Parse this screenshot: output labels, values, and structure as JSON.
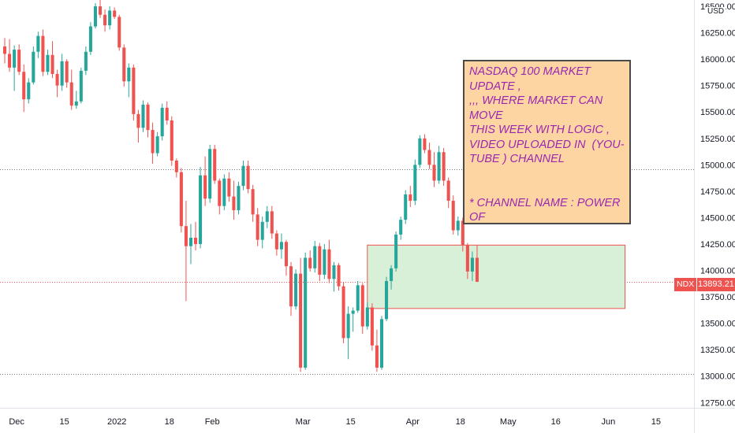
{
  "chart_data": {
    "type": "candlestick",
    "symbol": "NDX",
    "currency": "USD",
    "last_price": "13893.21",
    "last_price_value": 13893.21,
    "ylim": [
      12700,
      16560
    ],
    "y_ticks": [
      "16500.00",
      "16250.00",
      "16000.00",
      "15750.00",
      "15500.00",
      "15250.00",
      "15000.00",
      "14750.00",
      "14500.00",
      "14250.00",
      "14000.00",
      "13750.00",
      "13500.00",
      "13250.00",
      "13000.00",
      "12750.00"
    ],
    "y_tick_values": [
      16500,
      16250,
      16000,
      15750,
      15500,
      15250,
      15000,
      14750,
      14500,
      14250,
      14000,
      13750,
      13500,
      13250,
      13000,
      12750
    ],
    "x_ticks": [
      {
        "label": "Dec",
        "bar": 3
      },
      {
        "label": "15",
        "bar": 13
      },
      {
        "label": "2022",
        "bar": 24
      },
      {
        "label": "18",
        "bar": 35
      },
      {
        "label": "Feb",
        "bar": 44
      },
      {
        "label": "Mar",
        "bar": 63
      },
      {
        "label": "15",
        "bar": 73
      },
      {
        "label": "Apr",
        "bar": 86
      },
      {
        "label": "18",
        "bar": 96
      },
      {
        "label": "May",
        "bar": 106
      },
      {
        "label": "16",
        "bar": 116
      },
      {
        "label": "Jun",
        "bar": 127
      },
      {
        "label": "15",
        "bar": 137
      }
    ],
    "bar_count_visible": 150,
    "candles": [
      [
        16120,
        16200,
        15960,
        16050
      ],
      [
        16050,
        16190,
        15880,
        15920
      ],
      [
        15920,
        16130,
        15700,
        16090
      ],
      [
        16090,
        16140,
        15850,
        15880
      ],
      [
        15880,
        15950,
        15500,
        15620
      ],
      [
        15620,
        15820,
        15580,
        15780
      ],
      [
        15780,
        16120,
        15760,
        16070
      ],
      [
        16070,
        16260,
        16010,
        16220
      ],
      [
        16220,
        16280,
        15840,
        15880
      ],
      [
        15880,
        16090,
        15850,
        16040
      ],
      [
        16040,
        16170,
        15820,
        15860
      ],
      [
        15860,
        15900,
        15640,
        15750
      ],
      [
        15750,
        16050,
        15700,
        15980
      ],
      [
        15980,
        16000,
        15730,
        15780
      ],
      [
        15780,
        15900,
        15520,
        15560
      ],
      [
        15560,
        15700,
        15530,
        15600
      ],
      [
        15600,
        15920,
        15580,
        15890
      ],
      [
        15890,
        16120,
        15850,
        16070
      ],
      [
        16070,
        16350,
        16040,
        16310
      ],
      [
        16310,
        16530,
        16290,
        16500
      ],
      [
        16500,
        16560,
        16390,
        16420
      ],
      [
        16420,
        16470,
        16260,
        16320
      ],
      [
        16320,
        16500,
        16280,
        16460
      ],
      [
        16460,
        16490,
        16380,
        16400
      ],
      [
        16400,
        16420,
        16080,
        16110
      ],
      [
        16110,
        16140,
        15740,
        15790
      ],
      [
        15790,
        15960,
        15640,
        15920
      ],
      [
        15920,
        15950,
        15420,
        15480
      ],
      [
        15480,
        15520,
        15210,
        15350
      ],
      [
        15350,
        15610,
        15310,
        15570
      ],
      [
        15570,
        15590,
        15260,
        15330
      ],
      [
        15330,
        15400,
        15010,
        15110
      ],
      [
        15110,
        15310,
        15080,
        15270
      ],
      [
        15270,
        15580,
        15230,
        15540
      ],
      [
        15540,
        15600,
        15380,
        15420
      ],
      [
        15420,
        15460,
        14990,
        15040
      ],
      [
        15040,
        15060,
        14880,
        14930
      ],
      [
        14930,
        14970,
        14360,
        14420
      ],
      [
        14420,
        14660,
        13710,
        14230
      ],
      [
        14230,
        14440,
        14060,
        14310
      ],
      [
        14310,
        14460,
        14190,
        14250
      ],
      [
        14250,
        14980,
        14210,
        14900
      ],
      [
        14900,
        15080,
        14610,
        14680
      ],
      [
        14680,
        15190,
        14640,
        15150
      ],
      [
        15150,
        15190,
        14820,
        14850
      ],
      [
        14850,
        14870,
        14530,
        14610
      ],
      [
        14610,
        14910,
        14570,
        14870
      ],
      [
        14870,
        14930,
        14650,
        14700
      ],
      [
        14700,
        14850,
        14480,
        14570
      ],
      [
        14570,
        14840,
        14530,
        14800
      ],
      [
        14800,
        15040,
        14760,
        14990
      ],
      [
        14990,
        15040,
        14730,
        14770
      ],
      [
        14770,
        14810,
        14460,
        14530
      ],
      [
        14530,
        14590,
        14230,
        14290
      ],
      [
        14290,
        14510,
        14210,
        14460
      ],
      [
        14460,
        14610,
        14400,
        14560
      ],
      [
        14560,
        14610,
        14300,
        14350
      ],
      [
        14350,
        14380,
        14140,
        14200
      ],
      [
        14200,
        14350,
        14110,
        14270
      ],
      [
        14270,
        14290,
        13950,
        14040
      ],
      [
        14040,
        14080,
        13570,
        13660
      ],
      [
        13660,
        14010,
        13630,
        13970
      ],
      [
        13970,
        14120,
        13040,
        13080
      ],
      [
        13080,
        14170,
        13060,
        14120
      ],
      [
        14120,
        14190,
        13990,
        14020
      ],
      [
        14020,
        14280,
        13980,
        14230
      ],
      [
        14230,
        14260,
        13900,
        13960
      ],
      [
        13960,
        14250,
        13920,
        14200
      ],
      [
        14200,
        14290,
        13880,
        13920
      ],
      [
        13920,
        14080,
        13800,
        14050
      ],
      [
        14050,
        14070,
        13810,
        13850
      ],
      [
        13850,
        13890,
        13310,
        13360
      ],
      [
        13360,
        13660,
        13160,
        13590
      ],
      [
        13590,
        13650,
        13420,
        13620
      ],
      [
        13620,
        13900,
        13600,
        13860
      ],
      [
        13860,
        13880,
        13400,
        13470
      ],
      [
        13470,
        13700,
        13440,
        13650
      ],
      [
        13650,
        13690,
        13240,
        13290
      ],
      [
        13290,
        13440,
        13040,
        13080
      ],
      [
        13080,
        13570,
        13060,
        13540
      ],
      [
        13540,
        13940,
        13520,
        13900
      ],
      [
        13900,
        14050,
        13820,
        14020
      ],
      [
        14020,
        14370,
        13990,
        14340
      ],
      [
        14340,
        14510,
        14290,
        14480
      ],
      [
        14480,
        14760,
        14440,
        14720
      ],
      [
        14720,
        14800,
        14600,
        14660
      ],
      [
        14660,
        15050,
        14620,
        15000
      ],
      [
        15000,
        15280,
        14970,
        15250
      ]
    ],
    "candles_tail": [
      [
        15250,
        15290,
        15110,
        15140
      ],
      [
        15140,
        15210,
        14960,
        15000
      ],
      [
        15000,
        15120,
        14790,
        14850
      ],
      [
        14850,
        15180,
        14820,
        15120
      ],
      [
        15120,
        15160,
        14800,
        14850
      ],
      [
        14850,
        14880,
        14590,
        14660
      ],
      [
        14660,
        14710,
        14340,
        14380
      ],
      [
        14380,
        14510,
        14330,
        14470
      ],
      [
        14470,
        14500,
        14180,
        14240
      ],
      [
        14240,
        14260,
        13920,
        13990
      ],
      [
        13990,
        14180,
        13900,
        14120
      ],
      [
        14120,
        14240,
        13890,
        13893
      ]
    ],
    "support_zone": {
      "low": 13640,
      "high": 14240,
      "bar_start": 77,
      "bar_end": 131
    },
    "dotted_levels": [
      {
        "value": 14960,
        "color": "#787b86"
      },
      {
        "value": 13020,
        "color": "#787b86"
      },
      {
        "value": 13893.21,
        "color": "#ef5350"
      }
    ],
    "colors": {
      "up": "#26a69a",
      "down": "#ef5350",
      "zone_fill": "#d8efd8",
      "zone_border": "#ef5350"
    }
  },
  "annotation": {
    "text": "NASDAQ 100 MARKET UPDATE ,\n,,, WHERE MARKET CAN MOVE\nTHIS WEEK WITH LOGIC ,\nVIDEO UPLOADED IN  (YOU-\nTUBE ) CHANNEL\n\n\n* CHANNEL NAME : POWER OF\nSTOCK (JR)",
    "text_color": "#9b27b0",
    "background": "#fdd5a3"
  }
}
